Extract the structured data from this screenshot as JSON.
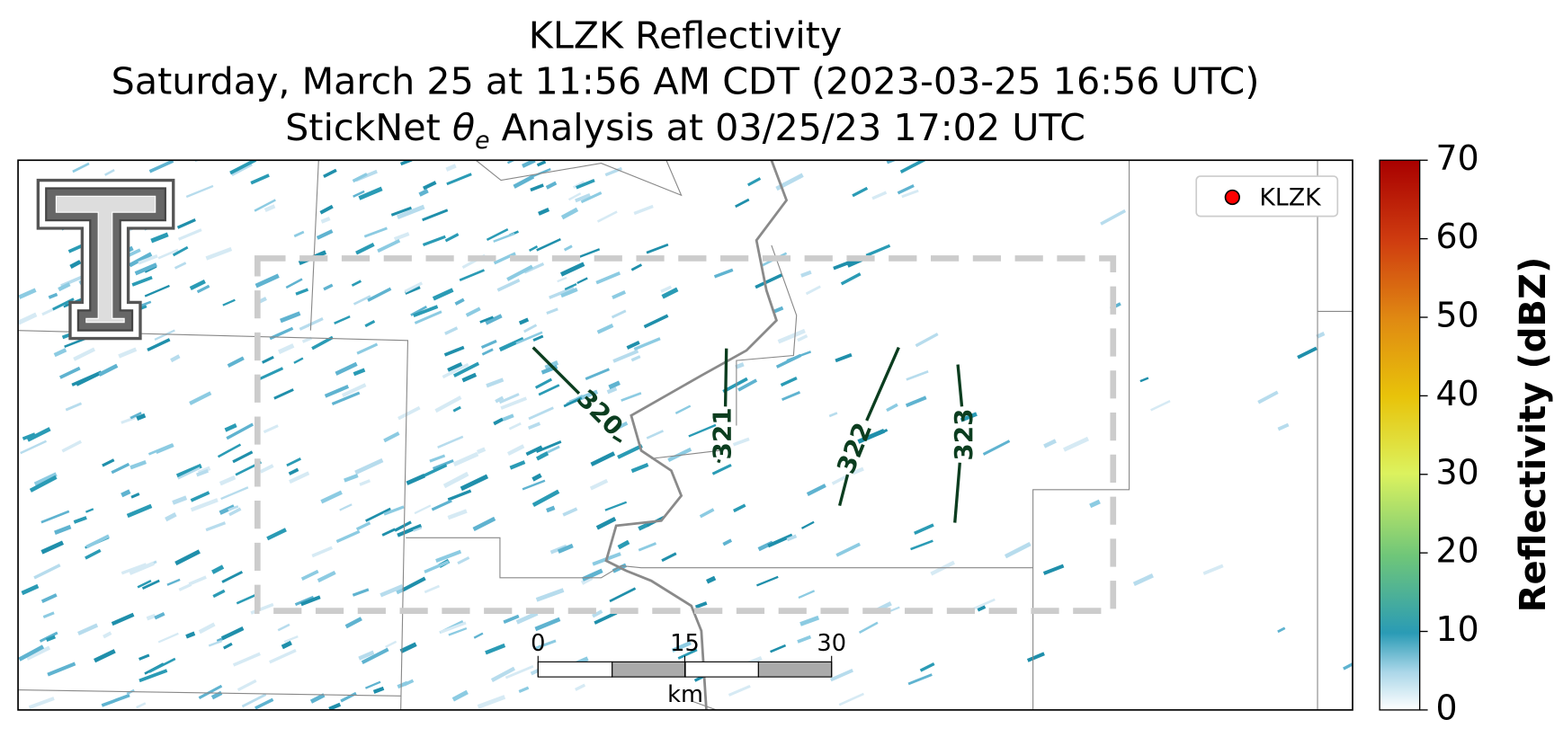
{
  "title": {
    "line1": "KLZK Reflectivity",
    "line2": "Saturday, March 25 at 11:56 AM CDT (2023-03-25 16:56 UTC)",
    "line3": {
      "prefix": "StickNet ",
      "symbol": "θ",
      "subscript": "e",
      "suffix": " Analysis at 03/25/23 17:02 UTC"
    }
  },
  "legend": {
    "label": "KLZK",
    "color": "#ff0000"
  },
  "contours": [
    320,
    321,
    322,
    323
  ],
  "scale_bar": {
    "ticks": [
      0,
      15,
      30
    ],
    "unit": "km"
  },
  "colorbar": {
    "label": "Reflectivity (dBZ)",
    "lim": [
      0,
      70
    ],
    "ticks": [
      0,
      10,
      20,
      30,
      40,
      50,
      60,
      70
    ]
  }
}
